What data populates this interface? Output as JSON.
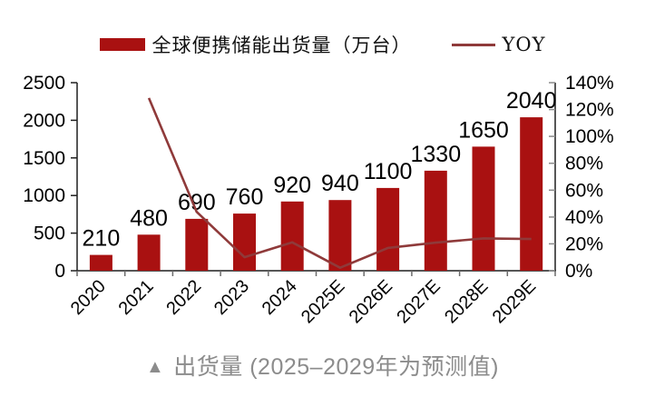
{
  "legend": {
    "bar_label": "全球便携储能出货量（万台）",
    "line_label": "YOY"
  },
  "caption": {
    "marker": "▲",
    "text": "出货量 (2025–2029年为预测值)"
  },
  "colors": {
    "bar": "#A91111",
    "line": "#8F3A3A",
    "axis": "#1F1F1F",
    "tick_left": "#1F1F1F",
    "tick_right": "#8A8A8A",
    "tick_bottom": "#6B6B6B",
    "text": "#000000",
    "caption": "#8C8C8C"
  },
  "chart_data": {
    "type": "bar",
    "subtype": "bar+line combo, dual axis",
    "categories": [
      "2020",
      "2021",
      "2022",
      "2023",
      "2024",
      "2025E",
      "2026E",
      "2027E",
      "2028E",
      "2029E"
    ],
    "series": [
      {
        "name": "全球便携储能出货量（万台）",
        "type": "bar",
        "axis": "left",
        "values": [
          210,
          480,
          690,
          760,
          920,
          940,
          1100,
          1330,
          1650,
          2040
        ],
        "data_labels": [
          "210",
          "480",
          "690",
          "760",
          "920",
          "940",
          "1100",
          "1330",
          "1650",
          "2040"
        ]
      },
      {
        "name": "YOY",
        "type": "line",
        "axis": "right",
        "values_pct": [
          null,
          128.6,
          43.8,
          10.1,
          21.1,
          2.2,
          17.0,
          20.9,
          24.1,
          23.6
        ]
      }
    ],
    "left_axis": {
      "min": 0,
      "max": 2500,
      "step": 500,
      "tick_labels": [
        "0",
        "500",
        "1000",
        "1500",
        "2000",
        "2500"
      ]
    },
    "right_axis": {
      "min": 0,
      "max": 140,
      "step": 20,
      "tick_labels": [
        "0%",
        "20%",
        "40%",
        "60%",
        "80%",
        "100%",
        "120%",
        "140%"
      ]
    },
    "grid": false,
    "legend_position": "top",
    "title": "",
    "xlabel": "",
    "ylabel": ""
  }
}
